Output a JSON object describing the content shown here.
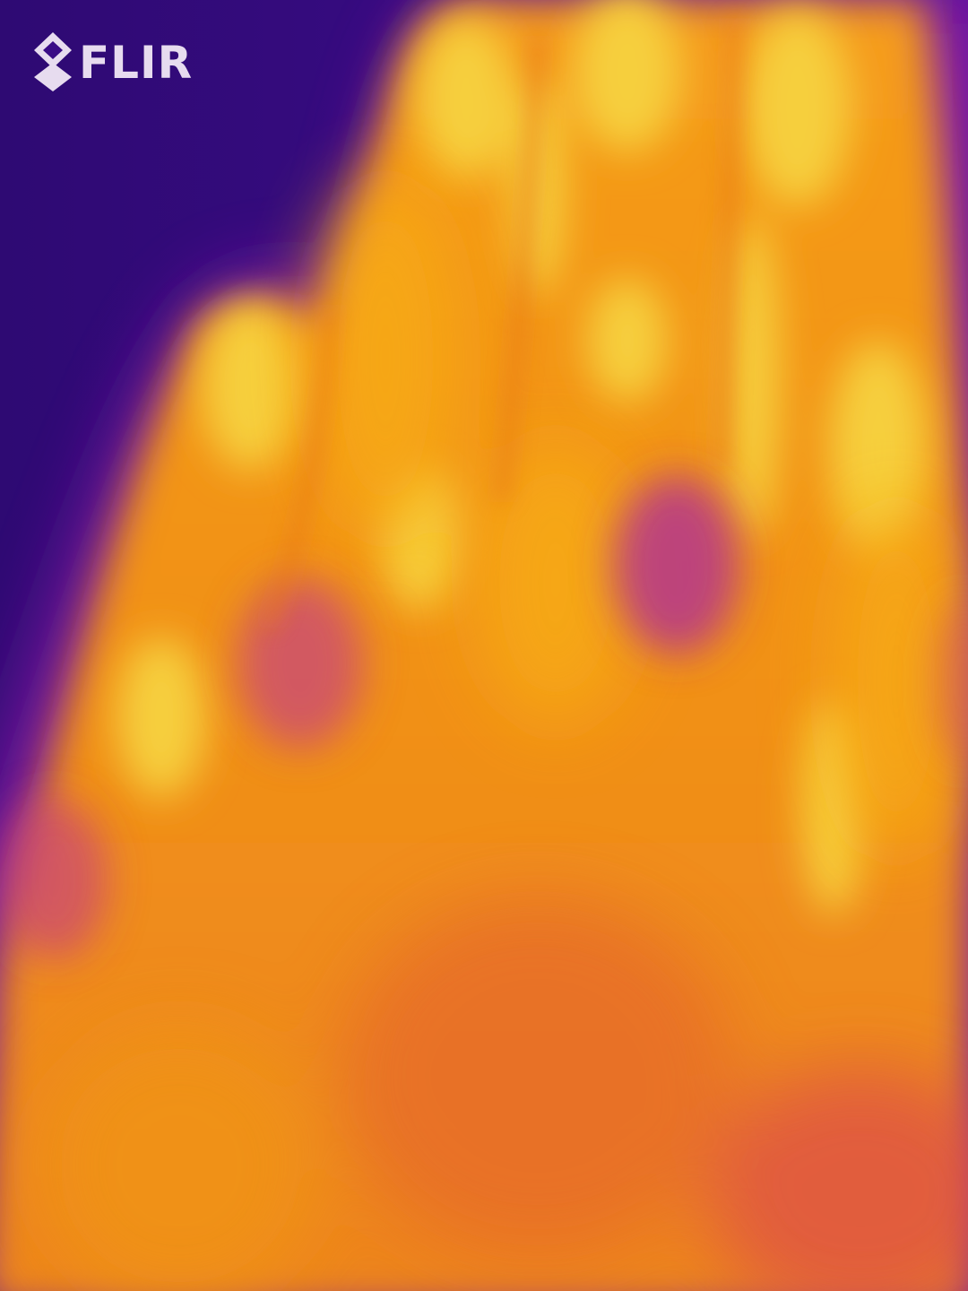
{
  "brand": {
    "name": "FLIR",
    "logo_color": "#e7dcef"
  },
  "thermal_image": {
    "palette": "iron",
    "colors": {
      "background": "#2a0a6e",
      "cool": "#7c17a8",
      "warm": "#e9731f",
      "hot": "#f7a414",
      "hottest": "#f5d84a"
    }
  }
}
